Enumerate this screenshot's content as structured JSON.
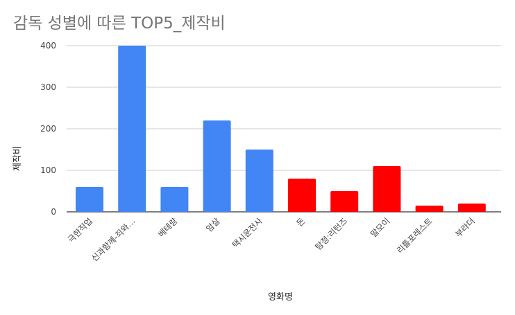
{
  "chart_data": {
    "type": "bar",
    "title": "감독 성별에 따른 TOP5_제작비",
    "xlabel": "영화명",
    "ylabel": "제작비",
    "ylim": [
      0,
      400
    ],
    "yticks": [
      "0",
      "100",
      "200",
      "300",
      "400"
    ],
    "grid": true,
    "categories": [
      "극한직업",
      "신과함께-죄와…",
      "베테랑",
      "암살",
      "택시운전사",
      "돈",
      "탐정:리턴즈",
      "말모이",
      "리틀포레스트",
      "부라더"
    ],
    "values": [
      60,
      400,
      60,
      220,
      150,
      80,
      50,
      110,
      15,
      20
    ],
    "colors": [
      "#4285f4",
      "#4285f4",
      "#4285f4",
      "#4285f4",
      "#4285f4",
      "#ff0000",
      "#ff0000",
      "#ff0000",
      "#ff0000",
      "#ff0000"
    ]
  }
}
